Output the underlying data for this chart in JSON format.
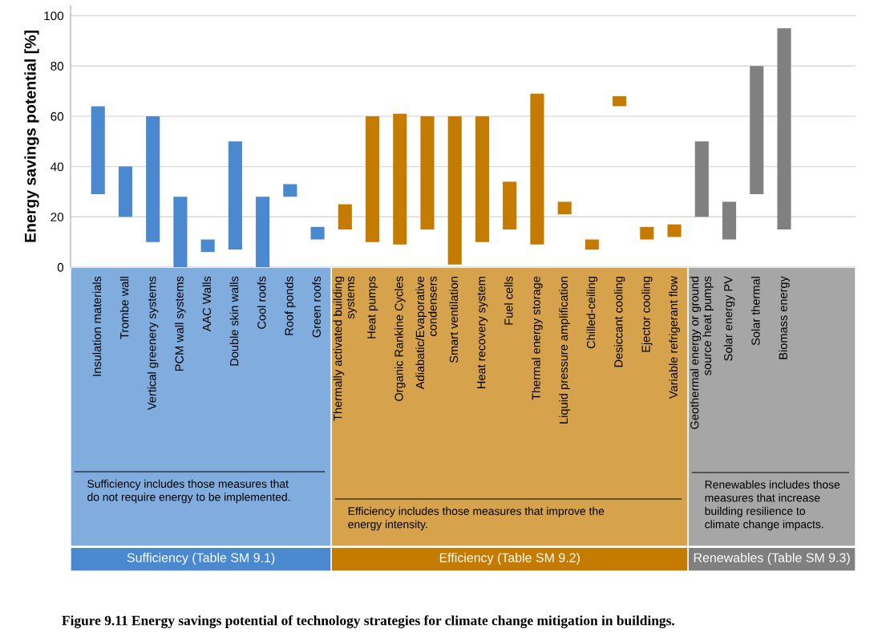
{
  "chart_data": {
    "type": "bar",
    "title": "Figure 9.11 Energy savings potential of technology strategies for climate change mitigation in buildings.",
    "ylabel": "Energy savings potential [%]",
    "categories": [
      "Insulation materials",
      "Trombe wall",
      "Vertical greenery systems",
      "PCM wall systems",
      "AAC Walls",
      "Double skin walls",
      "Cool roofs",
      "Roof ponds",
      "Green roofs",
      "Thermally activated building systems",
      "Heat pumps",
      "Organic Rankine Cycles",
      "Adiabatic/Evaporative condensers",
      "Smart ventilation",
      "Heat recovery system",
      "Fuel cells",
      "Thermal energy storage",
      "Liquid pressure amplification",
      "Chilled-ceiling",
      "Desiccant cooling",
      "Ejector cooling",
      "Variable refrigerant flow",
      "Geothermal energy or ground source heat pumps",
      "Solar energy PV",
      "Solar thermal",
      "Biomass energy"
    ],
    "base": [
      29,
      20,
      10,
      0,
      6,
      7,
      0,
      28,
      11,
      15,
      10,
      9,
      15,
      1,
      10,
      15,
      9,
      21,
      7,
      64,
      11,
      12,
      20,
      11,
      29,
      15
    ],
    "values": [
      35,
      20,
      50,
      28,
      5,
      43,
      28,
      5,
      5,
      10,
      50,
      52,
      45,
      59,
      50,
      19,
      60,
      5,
      4,
      4,
      5,
      5,
      30,
      15,
      51,
      80
    ],
    "colors": [
      "#4a89d0",
      "#4a89d0",
      "#4a89d0",
      "#4a89d0",
      "#4a89d0",
      "#4a89d0",
      "#4a89d0",
      "#4a89d0",
      "#4a89d0",
      "#c57a00",
      "#c57a00",
      "#c57a00",
      "#c57a00",
      "#c57a00",
      "#c57a00",
      "#c57a00",
      "#c57a00",
      "#c57a00",
      "#c57a00",
      "#c57a00",
      "#c57a00",
      "#c57a00",
      "#808080",
      "#808080",
      "#808080",
      "#808080"
    ],
    "ylim": [
      0,
      104
    ],
    "yticks": [
      0,
      20,
      40,
      60,
      80,
      100
    ],
    "grid": "y",
    "annotations": [
      "Sufficiency includes those measures that do not require energy to be implemented.",
      "Sufficiency (Table SM 9.1)",
      "Efficiency includes those measures that improve the energy intensity.",
      "Efficiency (Table SM 9.2)",
      "Renewables includes those measures that increase building resilience to climate change impacts.",
      "Renewables (Table SM 9.3)"
    ]
  }
}
